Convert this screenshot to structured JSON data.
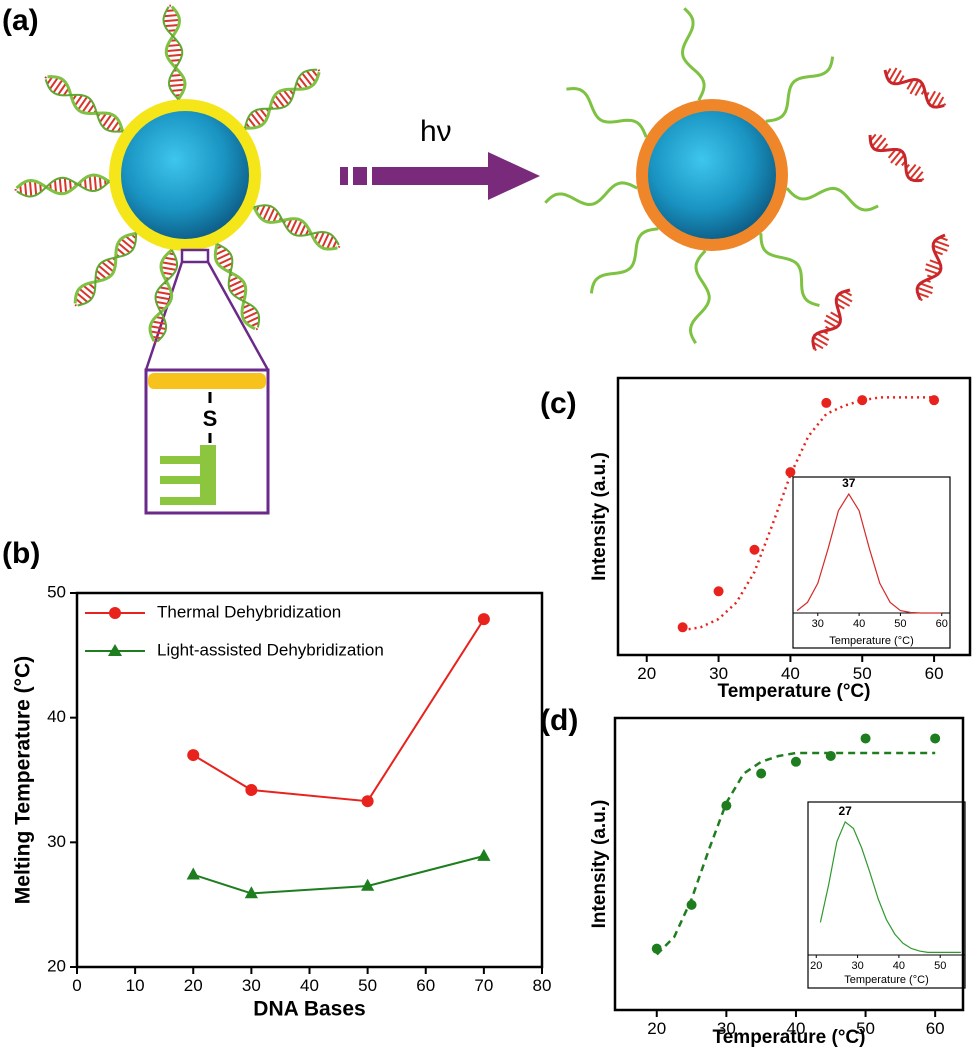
{
  "panel_labels": [
    "(a)",
    "(b)",
    "(c)",
    "(d)"
  ],
  "diagram": {
    "arrow_label": "hν",
    "linker_label": "S"
  },
  "chart_data": [
    {
      "type": "line",
      "xlabel": "DNA Bases",
      "ylabel": "Melting Temperature (°C)",
      "x": [
        20,
        30,
        50,
        70
      ],
      "series": [
        {
          "name": "Thermal Dehybridization",
          "color": "#e8221c",
          "marker": "circle",
          "values": [
            37,
            34.2,
            33.3,
            47.9
          ]
        },
        {
          "name": "Light-assisted Dehybridization",
          "color": "#1e7d1e",
          "marker": "triangle",
          "values": [
            27.4,
            25.9,
            26.5,
            28.9
          ]
        }
      ],
      "xlim": [
        0,
        80
      ],
      "xticks": [
        0,
        10,
        20,
        30,
        40,
        50,
        60,
        70,
        80
      ],
      "ylim": [
        20,
        50
      ],
      "yticks": [
        20,
        30,
        40,
        50
      ],
      "legend": "upper left"
    },
    {
      "type": "scatter",
      "xlabel": "Temperature (°C)",
      "ylabel": "Intensity (a.u.)",
      "series": [
        {
          "color": "#e8221c",
          "marker": "circle",
          "x": [
            25,
            30,
            35,
            40,
            45,
            50,
            60
          ],
          "values": [
            0.1,
            0.23,
            0.38,
            0.66,
            0.91,
            0.92,
            0.92
          ]
        },
        {
          "color": "#e8221c",
          "style": "dotted",
          "x": [
            25,
            27.5,
            30,
            32.5,
            35,
            37.5,
            40,
            42.5,
            45,
            47.5,
            50,
            52.5,
            55,
            57.5,
            60
          ],
          "values": [
            0.09,
            0.1,
            0.13,
            0.19,
            0.3,
            0.47,
            0.65,
            0.79,
            0.87,
            0.9,
            0.92,
            0.93,
            0.93,
            0.93,
            0.93
          ]
        }
      ],
      "xlim": [
        16,
        65
      ],
      "xticks": [
        20,
        30,
        40,
        50,
        60
      ],
      "ylim": [
        0,
        1
      ]
    },
    {
      "type": "line",
      "xlabel": "Temperature (°C)",
      "peak_label": "37",
      "series": [
        {
          "color": "#d42a2a",
          "x": [
            25,
            27.5,
            30,
            32.5,
            35,
            37.5,
            40,
            42.5,
            45,
            47.5,
            50,
            52.5,
            55,
            57.5,
            60
          ],
          "values": [
            0.02,
            0.09,
            0.25,
            0.54,
            0.86,
            1,
            0.86,
            0.54,
            0.25,
            0.09,
            0.02,
            0.004,
            0,
            0,
            0
          ]
        }
      ],
      "xlim": [
        24,
        62
      ],
      "xticks": [
        30,
        40,
        50,
        60
      ],
      "ylim": [
        0,
        1
      ]
    },
    {
      "type": "scatter",
      "xlabel": "Temperature (°C)",
      "ylabel": "Intensity (a.u.)",
      "series": [
        {
          "color": "#1e7d1e",
          "marker": "circle",
          "x": [
            20,
            25,
            30,
            35,
            40,
            45,
            50,
            60
          ],
          "values": [
            0.21,
            0.36,
            0.7,
            0.81,
            0.85,
            0.87,
            0.93,
            0.93
          ]
        },
        {
          "color": "#1e7d1e",
          "style": "dashed",
          "x": [
            20,
            22.5,
            25,
            27.5,
            30,
            32.5,
            35,
            37.5,
            40,
            42.5,
            45,
            47.5,
            50,
            52.5,
            55,
            57.5,
            60
          ],
          "values": [
            0.19,
            0.25,
            0.38,
            0.55,
            0.71,
            0.81,
            0.85,
            0.87,
            0.88,
            0.88,
            0.88,
            0.88,
            0.88,
            0.88,
            0.88,
            0.88,
            0.88
          ]
        }
      ],
      "xlim": [
        14,
        64
      ],
      "xticks": [
        20,
        30,
        40,
        50,
        60
      ],
      "ylim": [
        0,
        1
      ]
    },
    {
      "type": "line",
      "xlabel": "Temperature (°C)",
      "peak_label": "27",
      "series": [
        {
          "color": "#2e9a2e",
          "x": [
            21,
            23,
            25,
            27,
            29,
            31,
            33,
            35,
            37,
            39,
            41,
            43,
            45,
            47,
            49,
            51,
            53,
            55
          ],
          "values": [
            0.25,
            0.54,
            0.87,
            1.02,
            0.97,
            0.82,
            0.63,
            0.43,
            0.27,
            0.16,
            0.09,
            0.05,
            0.03,
            0.02,
            0.02,
            0.02,
            0.02,
            0.02
          ]
        }
      ],
      "xlim": [
        18,
        56
      ],
      "xticks": [
        20,
        30,
        40,
        50
      ],
      "ylim": [
        0,
        1.05
      ]
    }
  ]
}
